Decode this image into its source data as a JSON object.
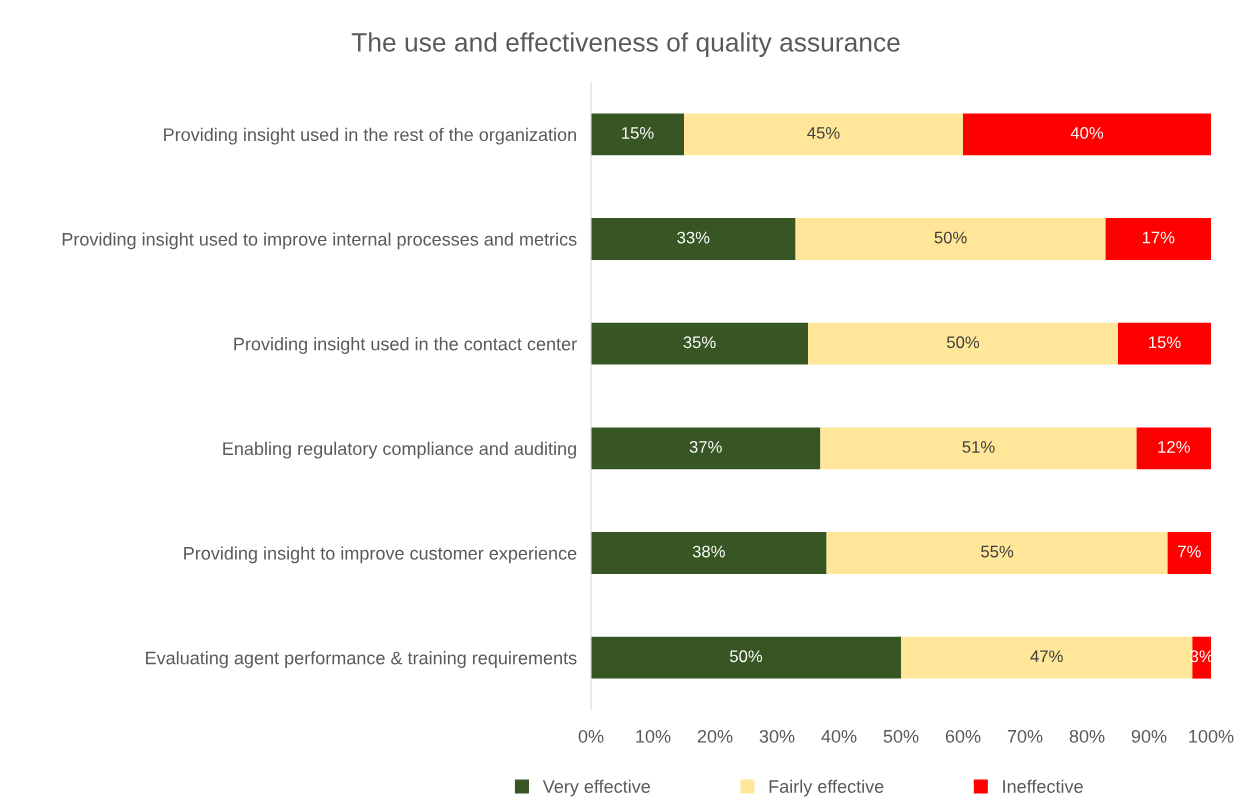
{
  "chart_data": {
    "type": "bar",
    "orientation": "horizontal",
    "stacked": true,
    "title": "The use and effectiveness of quality assurance",
    "categories": [
      "Providing insight used in the rest of the organization",
      "Providing insight used to improve internal processes and metrics",
      "Providing insight used in the contact center",
      "Enabling regulatory compliance and auditing",
      "Providing insight to improve customer experience",
      "Evaluating agent performance & training requirements"
    ],
    "series": [
      {
        "name": "Very effective",
        "color": "#375623",
        "values": [
          15,
          33,
          35,
          37,
          38,
          50
        ],
        "value_labels": [
          "15%",
          "33%",
          "35%",
          "37%",
          "38%",
          "50%"
        ]
      },
      {
        "name": "Fairly effective",
        "color": "#ffe699",
        "values": [
          45,
          50,
          50,
          51,
          55,
          47
        ],
        "value_labels": [
          "45%",
          "50%",
          "50%",
          "51%",
          "55%",
          "47%"
        ]
      },
      {
        "name": "Ineffective",
        "color": "#ff0000",
        "values": [
          40,
          17,
          15,
          12,
          7,
          3
        ],
        "value_labels": [
          "40%",
          "17%",
          "15%",
          "12%",
          "7%",
          "3%"
        ]
      }
    ],
    "xlim": [
      0,
      100
    ],
    "xticks": [
      {
        "value": 0,
        "label": "0%"
      },
      {
        "value": 10,
        "label": "10%"
      },
      {
        "value": 20,
        "label": "20%"
      },
      {
        "value": 30,
        "label": "30%"
      },
      {
        "value": 40,
        "label": "40%"
      },
      {
        "value": 50,
        "label": "50%"
      },
      {
        "value": 60,
        "label": "60%"
      },
      {
        "value": 70,
        "label": "70%"
      },
      {
        "value": 80,
        "label": "80%"
      },
      {
        "value": 90,
        "label": "90%"
      },
      {
        "value": 100,
        "label": "100%"
      }
    ],
    "grid": false,
    "legend": "bottom"
  }
}
